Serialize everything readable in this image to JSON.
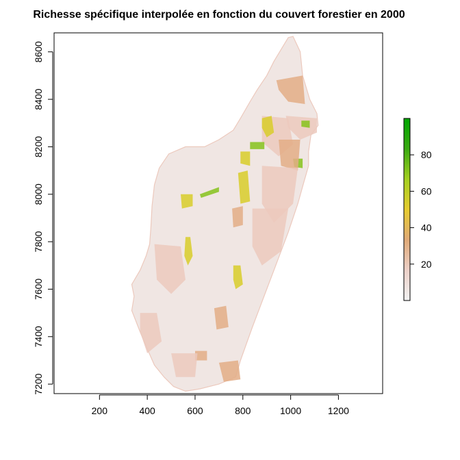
{
  "chart_data": {
    "type": "heatmap",
    "title": "Richesse spécifique interpolée en fonction du couvert forestier en 2000",
    "xlabel": "",
    "ylabel": "",
    "xlim": [
      10,
      1385
    ],
    "ylim": [
      7160,
      8680
    ],
    "x_ticks": [
      "200",
      "400",
      "600",
      "800",
      "1000",
      "1200"
    ],
    "y_ticks": [
      "7200",
      "7400",
      "7600",
      "7800",
      "8000",
      "8200",
      "8400",
      "8600"
    ],
    "legend": {
      "position": "right",
      "range": [
        0,
        100
      ],
      "ticks": [
        "20",
        "40",
        "60",
        "80"
      ],
      "colors": [
        "#f2f2f2",
        "#ecd0c8",
        "#e0aa78",
        "#e6cc30",
        "#a4d020",
        "#3aaa12",
        "#00a600"
      ]
    },
    "map_colors": {
      "low": "#f0e6e3",
      "lowmid": "#ecc9bd",
      "mid": "#e3ad86",
      "high": "#d8cc2a",
      "veryhigh": "#86c21c",
      "max": "#22a40a"
    },
    "island_outline": [
      [
        1010,
        8665
      ],
      [
        1040,
        8600
      ],
      [
        1050,
        8500
      ],
      [
        1080,
        8400
      ],
      [
        1110,
        8340
      ],
      [
        1115,
        8290
      ],
      [
        1085,
        8250
      ],
      [
        1075,
        8180
      ],
      [
        1075,
        8120
      ],
      [
        1055,
        8050
      ],
      [
        1030,
        7960
      ],
      [
        1010,
        7900
      ],
      [
        990,
        7840
      ],
      [
        960,
        7760
      ],
      [
        930,
        7680
      ],
      [
        900,
        7600
      ],
      [
        870,
        7520
      ],
      [
        840,
        7440
      ],
      [
        815,
        7370
      ],
      [
        790,
        7300
      ],
      [
        770,
        7230
      ],
      [
        700,
        7200
      ],
      [
        620,
        7180
      ],
      [
        560,
        7170
      ],
      [
        510,
        7190
      ],
      [
        470,
        7230
      ],
      [
        430,
        7280
      ],
      [
        395,
        7360
      ],
      [
        370,
        7420
      ],
      [
        335,
        7510
      ],
      [
        345,
        7570
      ],
      [
        335,
        7620
      ],
      [
        370,
        7680
      ],
      [
        395,
        7740
      ],
      [
        410,
        7790
      ],
      [
        415,
        7860
      ],
      [
        420,
        7950
      ],
      [
        430,
        8040
      ],
      [
        450,
        8110
      ],
      [
        490,
        8170
      ],
      [
        560,
        8200
      ],
      [
        640,
        8200
      ],
      [
        700,
        8230
      ],
      [
        760,
        8270
      ],
      [
        790,
        8320
      ],
      [
        830,
        8390
      ],
      [
        860,
        8440
      ],
      [
        900,
        8500
      ],
      [
        930,
        8560
      ],
      [
        960,
        8610
      ],
      [
        990,
        8660
      ]
    ],
    "patches": [
      {
        "level": "mid",
        "points": [
          [
            940,
            8480
          ],
          [
            1050,
            8500
          ],
          [
            1060,
            8380
          ],
          [
            990,
            8390
          ],
          [
            950,
            8440
          ]
        ]
      },
      {
        "level": "lowmid",
        "points": [
          [
            980,
            8330
          ],
          [
            1110,
            8320
          ],
          [
            1110,
            8260
          ],
          [
            1040,
            8230
          ],
          [
            990,
            8280
          ]
        ]
      },
      {
        "level": "lowmid",
        "points": [
          [
            880,
            8330
          ],
          [
            990,
            8320
          ],
          [
            1010,
            8210
          ],
          [
            950,
            8160
          ],
          [
            880,
            8220
          ]
        ]
      },
      {
        "level": "high",
        "points": [
          [
            880,
            8320
          ],
          [
            920,
            8330
          ],
          [
            930,
            8260
          ],
          [
            900,
            8240
          ],
          [
            880,
            8280
          ]
        ]
      },
      {
        "level": "veryhigh",
        "points": [
          [
            830,
            8220
          ],
          [
            890,
            8220
          ],
          [
            890,
            8190
          ],
          [
            830,
            8190
          ]
        ]
      },
      {
        "level": "veryhigh",
        "points": [
          [
            1045,
            8310
          ],
          [
            1080,
            8310
          ],
          [
            1080,
            8280
          ],
          [
            1045,
            8285
          ]
        ]
      },
      {
        "level": "veryhigh",
        "points": [
          [
            1010,
            8150
          ],
          [
            1050,
            8150
          ],
          [
            1050,
            8110
          ],
          [
            1015,
            8115
          ]
        ]
      },
      {
        "level": "high",
        "points": [
          [
            790,
            8180
          ],
          [
            830,
            8180
          ],
          [
            830,
            8120
          ],
          [
            790,
            8130
          ]
        ]
      },
      {
        "level": "mid",
        "points": [
          [
            950,
            8230
          ],
          [
            1040,
            8230
          ],
          [
            1030,
            8100
          ],
          [
            960,
            8120
          ]
        ]
      },
      {
        "level": "lowmid",
        "points": [
          [
            880,
            8120
          ],
          [
            1030,
            8110
          ],
          [
            1010,
            7960
          ],
          [
            930,
            7880
          ],
          [
            880,
            7960
          ]
        ]
      },
      {
        "level": "high",
        "points": [
          [
            780,
            8090
          ],
          [
            820,
            8100
          ],
          [
            830,
            7970
          ],
          [
            790,
            7960
          ]
        ]
      },
      {
        "level": "high",
        "points": [
          [
            540,
            8000
          ],
          [
            590,
            8000
          ],
          [
            590,
            7950
          ],
          [
            545,
            7940
          ]
        ]
      },
      {
        "level": "veryhigh",
        "points": [
          [
            620,
            8000
          ],
          [
            700,
            8030
          ],
          [
            700,
            8010
          ],
          [
            625,
            7985
          ]
        ]
      },
      {
        "level": "mid",
        "points": [
          [
            755,
            7940
          ],
          [
            800,
            7950
          ],
          [
            800,
            7870
          ],
          [
            760,
            7860
          ]
        ]
      },
      {
        "level": "lowmid",
        "points": [
          [
            840,
            7940
          ],
          [
            990,
            7940
          ],
          [
            960,
            7760
          ],
          [
            880,
            7700
          ],
          [
            840,
            7780
          ]
        ]
      },
      {
        "level": "high",
        "points": [
          [
            560,
            7820
          ],
          [
            580,
            7820
          ],
          [
            590,
            7740
          ],
          [
            570,
            7700
          ],
          [
            555,
            7740
          ]
        ]
      },
      {
        "level": "high",
        "points": [
          [
            760,
            7700
          ],
          [
            790,
            7700
          ],
          [
            800,
            7620
          ],
          [
            770,
            7600
          ],
          [
            760,
            7640
          ]
        ]
      },
      {
        "level": "lowmid",
        "points": [
          [
            430,
            7790
          ],
          [
            540,
            7780
          ],
          [
            560,
            7640
          ],
          [
            500,
            7580
          ],
          [
            440,
            7640
          ]
        ]
      },
      {
        "level": "mid",
        "points": [
          [
            680,
            7520
          ],
          [
            730,
            7530
          ],
          [
            740,
            7440
          ],
          [
            690,
            7430
          ]
        ]
      },
      {
        "level": "lowmid",
        "points": [
          [
            370,
            7500
          ],
          [
            440,
            7500
          ],
          [
            460,
            7380
          ],
          [
            400,
            7330
          ],
          [
            370,
            7420
          ]
        ]
      },
      {
        "level": "mid",
        "points": [
          [
            600,
            7340
          ],
          [
            650,
            7340
          ],
          [
            650,
            7300
          ],
          [
            600,
            7300
          ]
        ]
      },
      {
        "level": "mid",
        "points": [
          [
            700,
            7290
          ],
          [
            780,
            7300
          ],
          [
            790,
            7220
          ],
          [
            720,
            7210
          ]
        ]
      },
      {
        "level": "lowmid",
        "points": [
          [
            500,
            7330
          ],
          [
            610,
            7330
          ],
          [
            600,
            7230
          ],
          [
            520,
            7230
          ]
        ]
      }
    ]
  }
}
